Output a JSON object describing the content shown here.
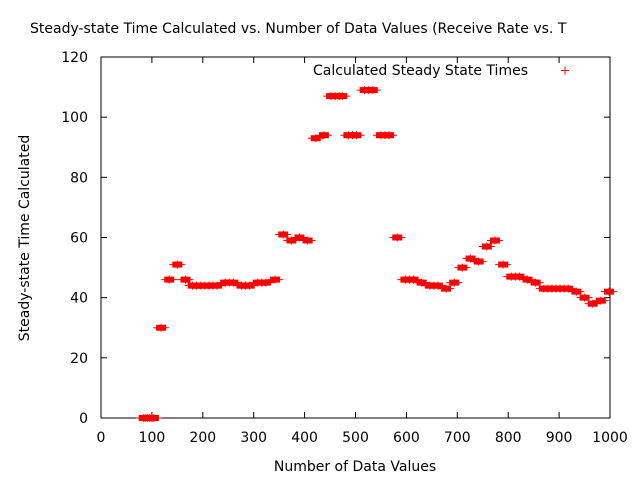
{
  "chart_data": {
    "type": "scatter",
    "title": "Steady-state Time Calculated vs. Number of Data Values (Receive Rate vs. T",
    "xlabel": "Number of Data Values",
    "ylabel": "Steady-state Time Calculated",
    "xlim": [
      0,
      1000
    ],
    "ylim": [
      0,
      120
    ],
    "xticks": [
      0,
      100,
      200,
      300,
      400,
      500,
      600,
      700,
      800,
      900,
      1000
    ],
    "yticks": [
      0,
      20,
      40,
      60,
      80,
      100,
      120
    ],
    "grid": false,
    "legend_position": "top-right",
    "series": [
      {
        "name": "Calculated Steady State Times",
        "color": "#ff0000",
        "marker": "plus",
        "points": [
          [
            84,
            0
          ],
          [
            88,
            0
          ],
          [
            92,
            0
          ],
          [
            96,
            0
          ],
          [
            100,
            0
          ],
          [
            104,
            0
          ],
          [
            118,
            30
          ],
          [
            134,
            46
          ],
          [
            150,
            51
          ],
          [
            166,
            46
          ],
          [
            180,
            44
          ],
          [
            188,
            44
          ],
          [
            196,
            44
          ],
          [
            204,
            44
          ],
          [
            212,
            44
          ],
          [
            220,
            44
          ],
          [
            228,
            44
          ],
          [
            244,
            45
          ],
          [
            252,
            45
          ],
          [
            260,
            45
          ],
          [
            276,
            44
          ],
          [
            284,
            44
          ],
          [
            292,
            44
          ],
          [
            308,
            45
          ],
          [
            316,
            45
          ],
          [
            324,
            45
          ],
          [
            342,
            46
          ],
          [
            358,
            61
          ],
          [
            374,
            59
          ],
          [
            390,
            60
          ],
          [
            406,
            59
          ],
          [
            422,
            93
          ],
          [
            438,
            94
          ],
          [
            452,
            107
          ],
          [
            460,
            107
          ],
          [
            468,
            107
          ],
          [
            474,
            107
          ],
          [
            486,
            94
          ],
          [
            494,
            94
          ],
          [
            502,
            94
          ],
          [
            518,
            109
          ],
          [
            526,
            109
          ],
          [
            534,
            109
          ],
          [
            550,
            94
          ],
          [
            558,
            94
          ],
          [
            566,
            94
          ],
          [
            582,
            60
          ],
          [
            598,
            46
          ],
          [
            606,
            46
          ],
          [
            614,
            46
          ],
          [
            630,
            45
          ],
          [
            646,
            44
          ],
          [
            654,
            44
          ],
          [
            662,
            44
          ],
          [
            678,
            43
          ],
          [
            694,
            45
          ],
          [
            710,
            50
          ],
          [
            726,
            53
          ],
          [
            742,
            52
          ],
          [
            758,
            57
          ],
          [
            774,
            59
          ],
          [
            790,
            51
          ],
          [
            806,
            47
          ],
          [
            814,
            47
          ],
          [
            822,
            47
          ],
          [
            838,
            46
          ],
          [
            854,
            45
          ],
          [
            870,
            43
          ],
          [
            878,
            43
          ],
          [
            886,
            43
          ],
          [
            894,
            43
          ],
          [
            902,
            43
          ],
          [
            910,
            43
          ],
          [
            918,
            43
          ],
          [
            934,
            42
          ],
          [
            950,
            40
          ],
          [
            966,
            38
          ],
          [
            982,
            39
          ],
          [
            998,
            42
          ]
        ]
      }
    ]
  }
}
